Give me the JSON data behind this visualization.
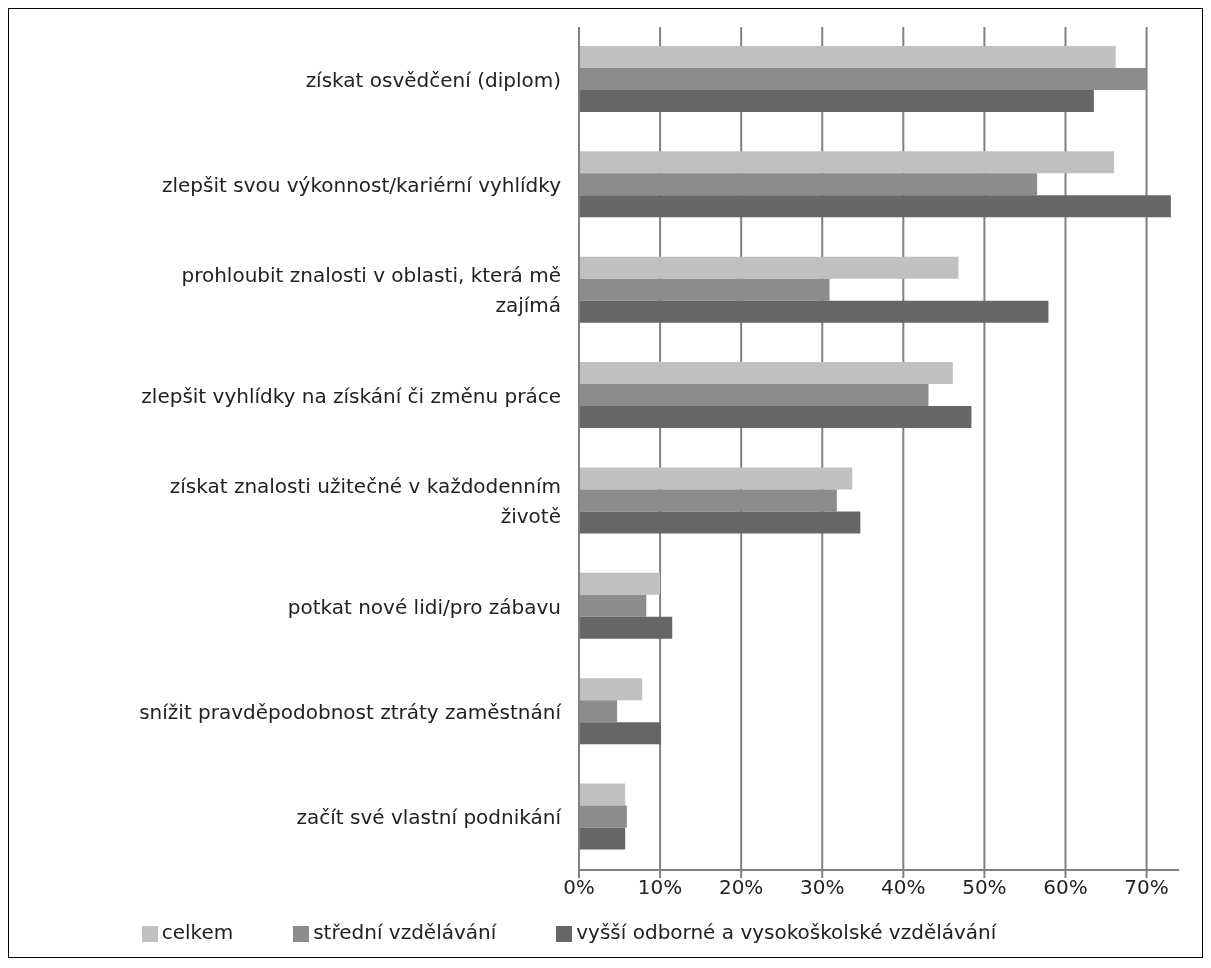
{
  "chart_data": {
    "type": "bar",
    "orientation": "horizontal",
    "categories": [
      "získat osvědčení (diplom)",
      "zlepšit svou výkonnost/kariérní vyhlídky",
      "prohloubit znalosti v oblasti, která mě zajímá",
      "zlepšit vyhlídky na získání či změnu práce",
      "získat znalosti užitečné v každodenním životě",
      "potkat nové lidi/pro zábavu",
      "snížit pravděpodobnost ztráty zaměstnání",
      "začít své vlastní podnikání"
    ],
    "series": [
      {
        "name": "celkem",
        "color": "#c0c0c0",
        "values": [
          66.2,
          66.0,
          46.8,
          46.1,
          33.7,
          10.0,
          7.8,
          5.7
        ]
      },
      {
        "name": "střední vzdělávání",
        "color": "#8c8c8c",
        "values": [
          70.0,
          56.5,
          30.9,
          43.1,
          31.8,
          8.3,
          4.7,
          5.9
        ]
      },
      {
        "name": "vyšší odborné a vysokoškolské vzdělávání",
        "color": "#666666",
        "values": [
          63.5,
          73.0,
          57.9,
          48.4,
          34.7,
          11.5,
          10.1,
          5.7
        ]
      }
    ],
    "xlim": [
      0,
      74
    ],
    "xticks": [
      {
        "value": 0,
        "label": "0%"
      },
      {
        "value": 10,
        "label": "10%"
      },
      {
        "value": 20,
        "label": "20%"
      },
      {
        "value": 30,
        "label": "30%"
      },
      {
        "value": 40,
        "label": "40%"
      },
      {
        "value": 50,
        "label": "50%"
      },
      {
        "value": 60,
        "label": "60%"
      },
      {
        "value": 70,
        "label": "70%"
      }
    ],
    "grid": "x",
    "legend": "bottom"
  }
}
